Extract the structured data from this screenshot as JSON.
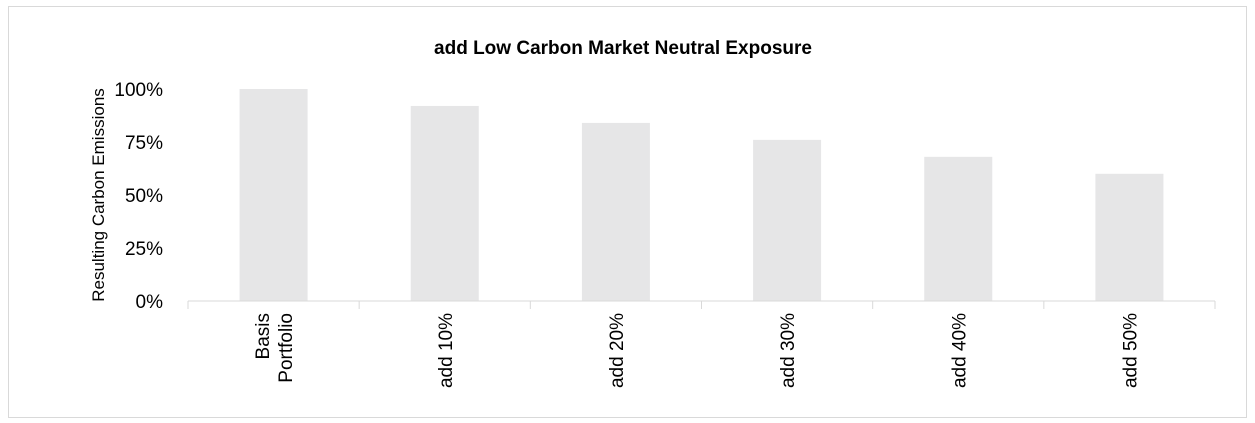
{
  "chart_data": {
    "type": "bar",
    "title": "add Low Carbon Market Neutral Exposure",
    "xlabel": "",
    "ylabel": "Resulting Carbon Emissions",
    "categories": [
      [
        "Basis",
        "Portfolio"
      ],
      [
        "add 10%"
      ],
      [
        "add 20%"
      ],
      [
        "add 30%"
      ],
      [
        "add 40%"
      ],
      [
        "add 50%"
      ]
    ],
    "values": [
      100,
      92,
      84,
      76,
      68,
      60
    ],
    "ylim": [
      0,
      100
    ],
    "yticks": [
      "0%",
      "25%",
      "50%",
      "75%",
      "100%"
    ],
    "ytick_values": [
      0,
      25,
      50,
      75,
      100
    ],
    "grid": false,
    "bar_color": "#e6e6e7",
    "axis_color": "#d9d9d9"
  }
}
